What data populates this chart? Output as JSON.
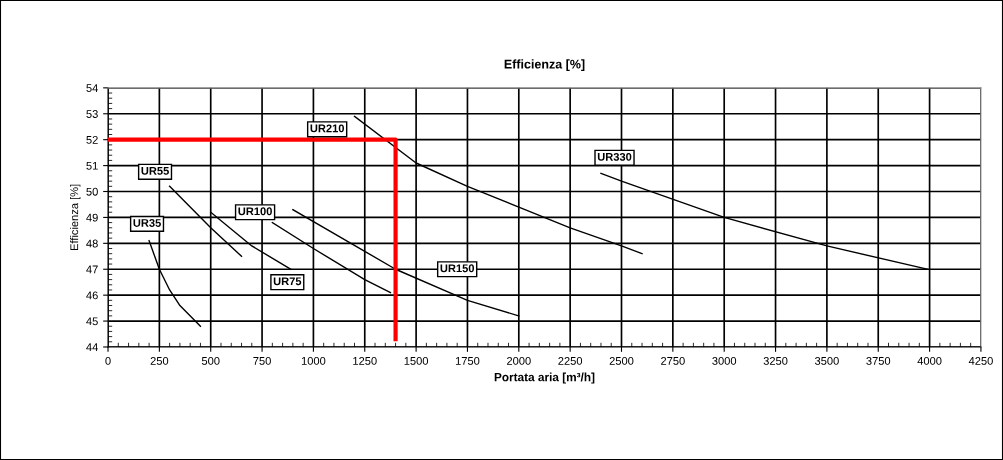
{
  "chart_data": {
    "type": "line",
    "title": "Efficienza [%]",
    "xlabel": "Portata aria [m³/h]",
    "ylabel": "Efficienza [%]",
    "xlim": [
      0,
      4250
    ],
    "xticks": [
      0,
      250,
      500,
      750,
      1000,
      1250,
      1500,
      1750,
      2000,
      2250,
      2500,
      2750,
      3000,
      3250,
      3500,
      3750,
      4000,
      4250
    ],
    "ylim": [
      44,
      54
    ],
    "yticks": [
      44,
      45,
      46,
      47,
      48,
      49,
      50,
      51,
      52,
      53,
      54
    ],
    "grid": true,
    "marker": "none",
    "line_style": "solid",
    "series": [
      {
        "color": "#000000",
        "x": [
          200,
          250,
          300,
          350,
          450
        ],
        "values": [
          48.1,
          47.0,
          46.2,
          45.6,
          44.8
        ]
      },
      {
        "color": "#000000",
        "x": [
          300,
          500,
          650
        ],
        "values": [
          50.2,
          48.6,
          47.5
        ]
      },
      {
        "color": "#000000",
        "x": [
          500,
          700,
          890
        ],
        "values": [
          49.2,
          47.9,
          47.0
        ]
      },
      {
        "color": "#000000",
        "x": [
          800,
          1000,
          1250,
          1375
        ],
        "values": [
          48.8,
          47.8,
          46.6,
          46.1
        ]
      },
      {
        "color": "#000000",
        "x": [
          900,
          1400,
          1750,
          2000
        ],
        "values": [
          49.3,
          47.0,
          45.8,
          45.2
        ]
      },
      {
        "color": "#000000",
        "x": [
          1200,
          1500,
          1750,
          2000,
          2250,
          2500,
          2600
        ],
        "values": [
          52.9,
          51.1,
          50.2,
          49.4,
          48.6,
          47.9,
          47.6
        ]
      },
      {
        "color": "#000000",
        "x": [
          2400,
          2500,
          3000,
          3500,
          3990
        ],
        "values": [
          50.7,
          50.4,
          49.0,
          47.9,
          47.0
        ]
      },
      {
        "color": "#ff0000",
        "x": [
          0,
          1400,
          1400
        ],
        "values": [
          52,
          52,
          44.3
        ]
      }
    ],
    "annotations": [
      {
        "text": "UR35",
        "x": 190,
        "y": 48.75
      },
      {
        "text": "UR55",
        "x": 229,
        "y": 50.76
      },
      {
        "text": "UR75",
        "x": 873,
        "y": 46.5
      },
      {
        "text": "UR100",
        "x": 716,
        "y": 49.2
      },
      {
        "text": "UR150",
        "x": 1700,
        "y": 47.0
      },
      {
        "text": "UR210",
        "x": 1067,
        "y": 52.4
      },
      {
        "text": "UR330",
        "x": 2466,
        "y": 51.3
      }
    ]
  }
}
